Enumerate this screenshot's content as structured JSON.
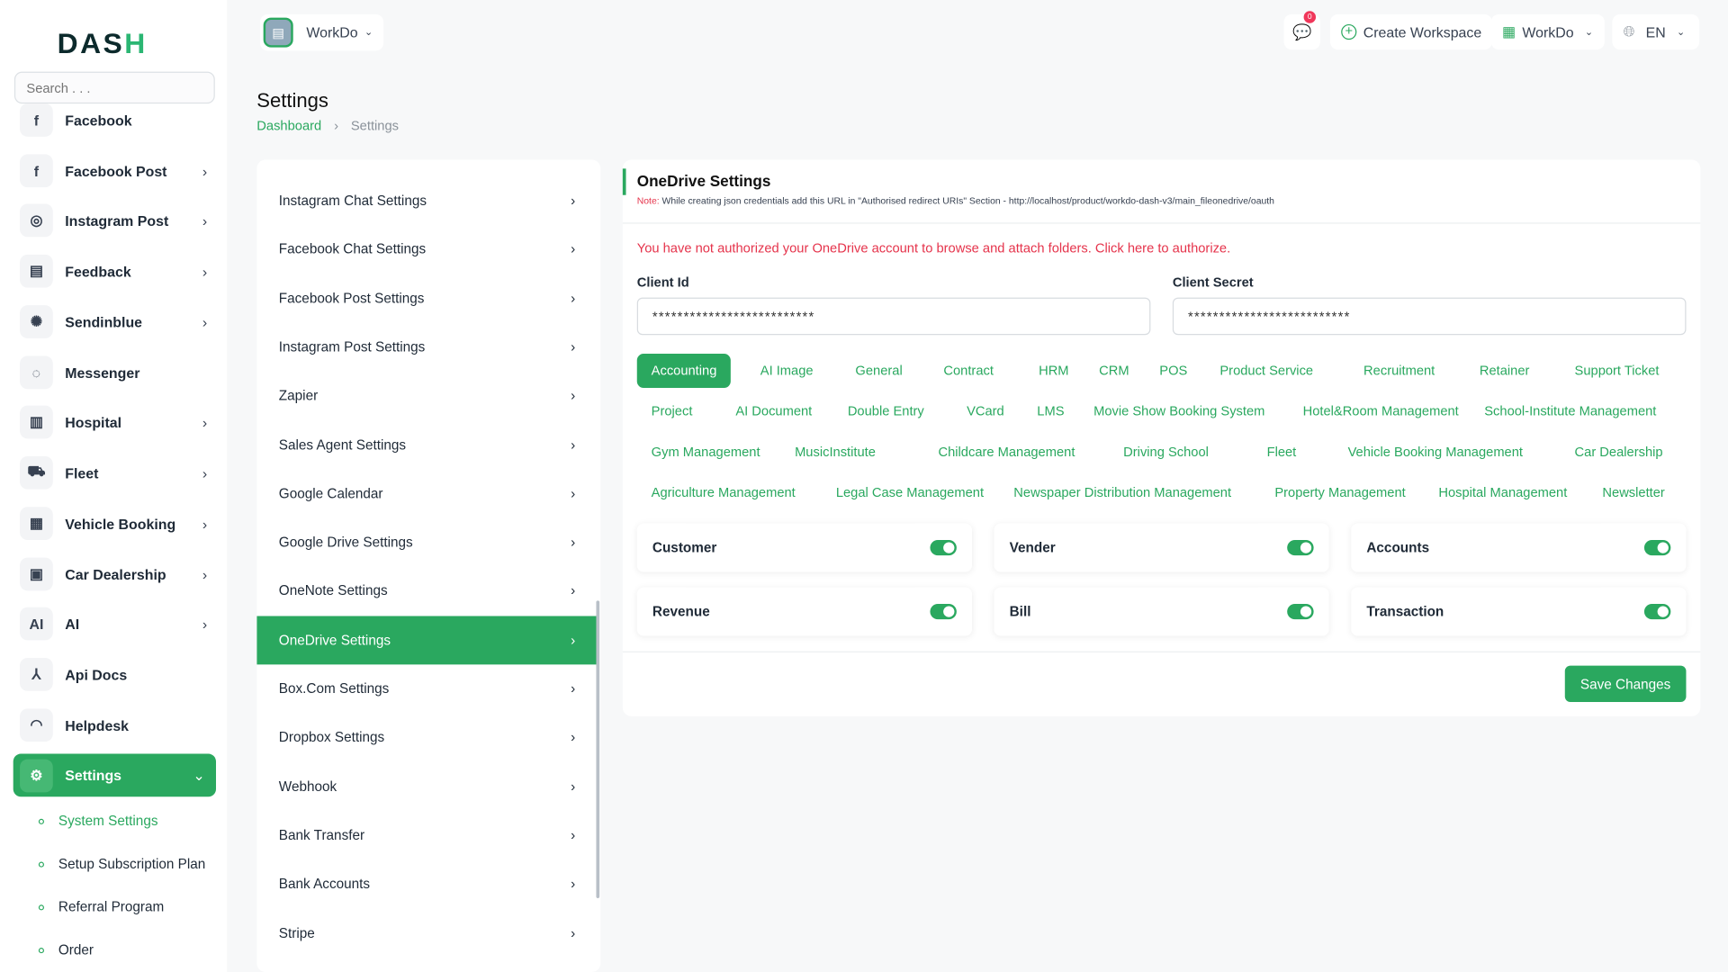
{
  "logo": {
    "text": "DASH"
  },
  "search": {
    "placeholder": "Search . . ."
  },
  "sidebar": {
    "items": [
      {
        "label": "Facebook",
        "icon": "facebook-icon",
        "chev": false
      },
      {
        "label": "Facebook Post",
        "icon": "facebook-post-icon",
        "chev": true
      },
      {
        "label": "Instagram Post",
        "icon": "instagram-icon",
        "chev": true
      },
      {
        "label": "Feedback",
        "icon": "feedback-icon",
        "chev": true
      },
      {
        "label": "Sendinblue",
        "icon": "sendinblue-icon",
        "chev": true
      },
      {
        "label": "Messenger",
        "icon": "messenger-icon",
        "chev": false
      },
      {
        "label": "Hospital",
        "icon": "hospital-icon",
        "chev": true
      },
      {
        "label": "Fleet",
        "icon": "car-icon",
        "chev": true
      },
      {
        "label": "Vehicle Booking",
        "icon": "calendar-icon",
        "chev": true
      },
      {
        "label": "Car Dealership",
        "icon": "dealership-icon",
        "chev": true
      },
      {
        "label": "AI",
        "icon": "ai-icon",
        "chev": true
      },
      {
        "label": "Api Docs",
        "icon": "api-icon",
        "chev": false
      },
      {
        "label": "Helpdesk",
        "icon": "headset-icon",
        "chev": false
      },
      {
        "label": "Settings",
        "icon": "gear-icon",
        "chev": true
      }
    ],
    "sub": [
      "System Settings",
      "Setup Subscription Plan",
      "Referral Program",
      "Order"
    ]
  },
  "header": {
    "workspace": "WorkDo",
    "notif_count": "0",
    "create": "Create Workspace",
    "company": "WorkDo",
    "lang": "EN"
  },
  "page": {
    "title": "Settings",
    "crumb_home": "Dashboard",
    "crumb_current": "Settings"
  },
  "settings_list": [
    "Instagram Chat Settings",
    "Facebook Chat Settings",
    "Facebook Post Settings",
    "Instagram Post Settings",
    "Zapier",
    "Sales Agent Settings",
    "Google Calendar",
    "Google Drive Settings",
    "OneNote Settings",
    "OneDrive Settings",
    "Box.Com Settings",
    "Dropbox Settings",
    "Webhook",
    "Bank Transfer",
    "Bank Accounts",
    "Stripe"
  ],
  "card": {
    "title": "OneDrive Settings",
    "note_label": "Note:",
    "note": "While creating json credentials add this URL in \"Authorised redirect URIs\" Section - http://localhost/product/workdo-dash-v3/main_fileonedrive/oauth",
    "warning": "You have not authorized your OneDrive account to browse and attach folders. Click here to authorize.",
    "client_id_label": "Client Id",
    "client_id": "**************************",
    "client_secret_label": "Client Secret",
    "client_secret": "**************************",
    "tabs": [
      [
        "Accounting",
        "AI Image",
        "General",
        "Contract",
        "HRM",
        "CRM",
        "POS",
        "Product Service",
        "Recruitment",
        "Retainer",
        "Support Ticket"
      ],
      [
        "Project",
        "AI Document",
        "Double Entry",
        "VCard",
        "LMS",
        "Movie Show Booking System",
        "Hotel&Room Management",
        "School-Institute Management"
      ],
      [
        "Gym Management",
        "MusicInstitute",
        "Childcare Management",
        "Driving School",
        "Fleet",
        "Vehicle Booking Management",
        "Car Dealership"
      ],
      [
        "Agriculture Management",
        "Legal Case Management",
        "Newspaper Distribution Management",
        "Property Management",
        "Hospital Management",
        "Newsletter"
      ]
    ],
    "active_tab": "Accounting",
    "toggles": [
      {
        "label": "Customer",
        "on": true
      },
      {
        "label": "Vender",
        "on": true
      },
      {
        "label": "Accounts",
        "on": true
      },
      {
        "label": "Revenue",
        "on": true
      },
      {
        "label": "Bill",
        "on": true
      },
      {
        "label": "Transaction",
        "on": true
      }
    ],
    "save": "Save Changes"
  },
  "colors": {
    "accent": "#2aa85f",
    "danger": "#e5334b"
  }
}
